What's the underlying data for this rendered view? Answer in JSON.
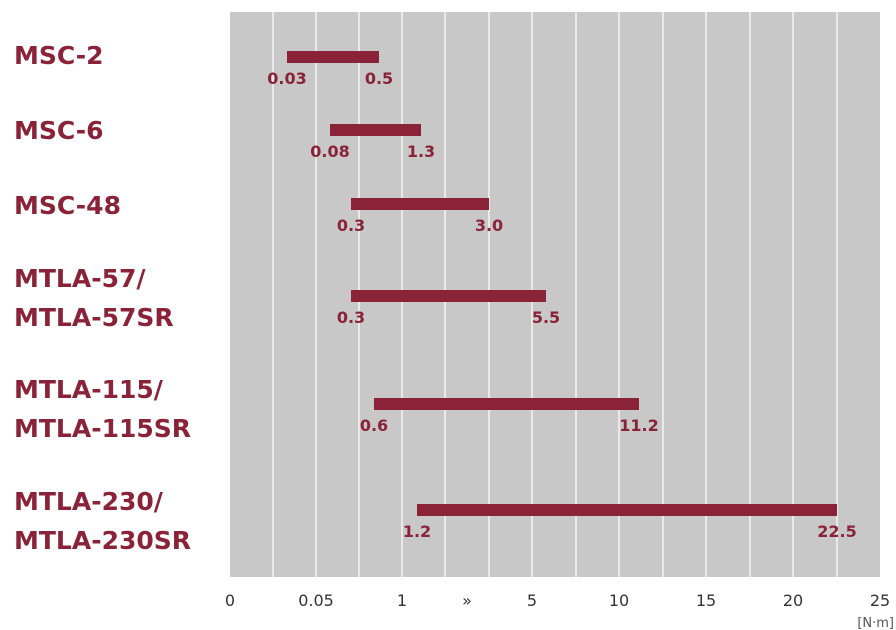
{
  "chart_data": {
    "type": "bar",
    "orientation": "horizontal-range",
    "unit": "[N·m]",
    "categories": [
      [
        "MSC-2"
      ],
      [
        "MSC-6"
      ],
      [
        "MSC-48"
      ],
      [
        "MTLA-57/",
        "MTLA-57SR"
      ],
      [
        "MTLA-115/",
        "MTLA-115SR"
      ],
      [
        "MTLA-230/",
        "MTLA-230SR"
      ]
    ],
    "ranges": [
      {
        "min": 0.03,
        "max": 0.5,
        "min_label": "0.03",
        "max_label": "0.5"
      },
      {
        "min": 0.08,
        "max": 1.3,
        "min_label": "0.08",
        "max_label": "1.3"
      },
      {
        "min": 0.3,
        "max": 3.0,
        "min_label": "0.3",
        "max_label": "3.0"
      },
      {
        "min": 0.3,
        "max": 5.5,
        "min_label": "0.3",
        "max_label": "5.5"
      },
      {
        "min": 0.6,
        "max": 11.2,
        "min_label": "0.6",
        "max_label": "11.2"
      },
      {
        "min": 1.2,
        "max": 22.5,
        "min_label": "1.2",
        "max_label": "22.5"
      }
    ],
    "xticks": [
      "0",
      "0.05",
      "1",
      "»",
      "5",
      "10",
      "15",
      "20",
      "25"
    ],
    "axis_breaks": [
      "0-0.05",
      "0.05-1",
      "1-5 (broken axis »)"
    ],
    "grid": true,
    "colors": {
      "bar": "#8a2238",
      "plot_bg": "#c8c8c8",
      "grid": "#ffffff",
      "label": "#8a2238"
    }
  }
}
